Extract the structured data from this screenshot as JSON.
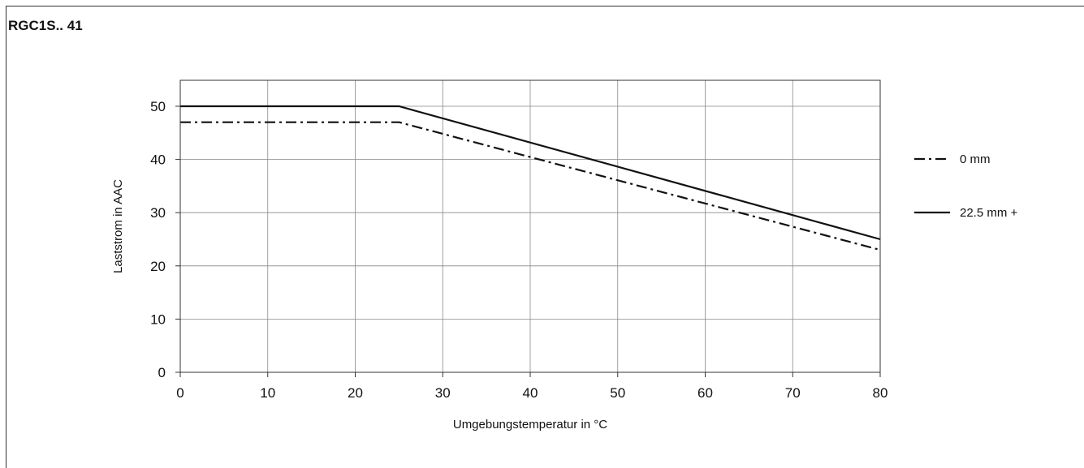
{
  "chart_data": {
    "type": "line",
    "title": "RGC1S.. 41",
    "xlabel": "Umgebungstemperatur in °C",
    "ylabel": "Laststrom in AAC",
    "xlim": [
      0,
      80
    ],
    "ylim": [
      0,
      55
    ],
    "x_ticks": [
      0,
      10,
      20,
      30,
      40,
      50,
      60,
      70,
      80
    ],
    "y_ticks": [
      0,
      10,
      20,
      30,
      40,
      50
    ],
    "grid": true,
    "legend_position": "right",
    "series": [
      {
        "name": "0 mm",
        "style": "dash-dot",
        "x": [
          0,
          25,
          80
        ],
        "y": [
          47,
          47,
          23
        ]
      },
      {
        "name": "22.5 mm  +",
        "style": "solid",
        "x": [
          0,
          25,
          80
        ],
        "y": [
          50,
          50,
          25
        ]
      }
    ]
  },
  "colors": {
    "line": "#111111",
    "grid": "#888888",
    "axis": "#333333"
  }
}
